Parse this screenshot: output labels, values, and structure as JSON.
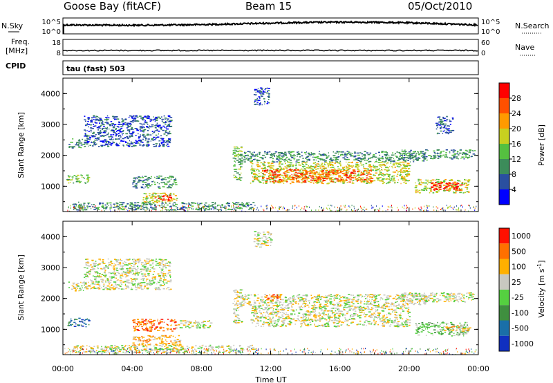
{
  "header": {
    "station": "Goose Bay (fitACF)",
    "beam": "Beam 15",
    "date": "05/Oct/2010"
  },
  "noise_panel": {
    "left_label": "N.Sky",
    "right_label": "N.Search",
    "left_ticks": [
      "10^5",
      "10^0"
    ],
    "right_ticks": [
      "10^5",
      "10^0"
    ]
  },
  "freq_panel": {
    "left_label_1": "Freq.",
    "left_label_2": "[MHz]",
    "right_label": "Nave",
    "left_ticks": [
      "18",
      "8"
    ],
    "right_ticks": [
      "60",
      "0"
    ]
  },
  "cpid": {
    "label": "CPID",
    "value": "tau (fast) 503"
  },
  "chart_data": [
    {
      "type": "heatmap",
      "name": "Power",
      "ylabel": "Slant Range [km]",
      "ylim": [
        180,
        4500
      ],
      "yticks": [
        1000,
        2000,
        3000,
        4000
      ],
      "xlim": [
        0,
        24
      ],
      "colorbar": {
        "label": "Power [dB]",
        "ticks": [
          "4",
          "8",
          "12",
          "16",
          "20",
          "24",
          "28"
        ],
        "colors": [
          "#0000ff",
          "#2a4fa0",
          "#3c8c5a",
          "#55c040",
          "#c8d020",
          "#ff9a00",
          "#ff5000",
          "#ff0000"
        ]
      },
      "regions": [
        {
          "t0": 0.3,
          "t1": 1.3,
          "r0": 2250,
          "r1": 2550,
          "level": 2
        },
        {
          "t0": 0.2,
          "t1": 1.5,
          "r0": 1100,
          "r1": 1380,
          "level": 3
        },
        {
          "t0": 1.2,
          "t1": 6.2,
          "r0": 2300,
          "r1": 3300,
          "level": 1
        },
        {
          "t0": 4.0,
          "t1": 6.5,
          "r0": 950,
          "r1": 1350,
          "level": 2
        },
        {
          "t0": 4.6,
          "t1": 6.6,
          "r0": 480,
          "r1": 800,
          "level": 4
        },
        {
          "t0": 5.2,
          "t1": 6.2,
          "r0": 560,
          "r1": 720,
          "level": 7
        },
        {
          "t0": 0.5,
          "t1": 11.0,
          "r0": 250,
          "r1": 500,
          "level": 2
        },
        {
          "t0": 9.8,
          "t1": 10.3,
          "r0": 1200,
          "r1": 2300,
          "level": 3
        },
        {
          "t0": 10.2,
          "t1": 21.0,
          "r0": 1800,
          "r1": 2150,
          "level": 2
        },
        {
          "t0": 10.8,
          "t1": 20.0,
          "r0": 1100,
          "r1": 1800,
          "level": 4
        },
        {
          "t0": 11.5,
          "t1": 17.8,
          "r0": 1150,
          "r1": 1550,
          "level": 6
        },
        {
          "t0": 19.5,
          "t1": 23.8,
          "r0": 1900,
          "r1": 2200,
          "level": 2
        },
        {
          "t0": 20.3,
          "t1": 23.4,
          "r0": 800,
          "r1": 1250,
          "level": 4
        },
        {
          "t0": 21.2,
          "t1": 23.0,
          "r0": 880,
          "r1": 1150,
          "level": 7
        },
        {
          "t0": 11.0,
          "t1": 12.0,
          "r0": 3650,
          "r1": 4200,
          "level": 1
        },
        {
          "t0": 21.5,
          "t1": 22.5,
          "r0": 2700,
          "r1": 3300,
          "level": 1
        }
      ]
    },
    {
      "type": "heatmap",
      "name": "Velocity",
      "ylabel": "Slant Range [km]",
      "ylim": [
        180,
        4500
      ],
      "yticks": [
        1000,
        2000,
        3000,
        4000
      ],
      "xlim": [
        0,
        24
      ],
      "xticks": [
        "00:00",
        "04:00",
        "08:00",
        "12:00",
        "16:00",
        "20:00",
        "00:00"
      ],
      "xlabel": "Time UT",
      "colorbar": {
        "label": "Velocity [m s",
        "label_sup": "-1",
        "label_end": "]",
        "ticks": [
          "1000",
          "500",
          "100",
          "25",
          "-25",
          "-100",
          "-500",
          "-1000"
        ],
        "colors": [
          "#1030c0",
          "#1a6fa8",
          "#3f8f3f",
          "#55d040",
          "#c8c8c0",
          "#ffb000",
          "#ff7000",
          "#ff1000"
        ]
      },
      "regions": [
        {
          "t0": 0.3,
          "t1": 1.3,
          "r0": 2250,
          "r1": 2550,
          "level": 4
        },
        {
          "t0": 0.2,
          "t1": 1.5,
          "r0": 1100,
          "r1": 1380,
          "level": 1
        },
        {
          "t0": 1.2,
          "t1": 6.2,
          "r0": 2300,
          "r1": 3300,
          "level": 4
        },
        {
          "t0": 4.0,
          "t1": 6.5,
          "r0": 950,
          "r1": 1350,
          "level": 6
        },
        {
          "t0": 6.5,
          "t1": 8.5,
          "r0": 1050,
          "r1": 1300,
          "level": 4
        },
        {
          "t0": 4.0,
          "t1": 6.8,
          "r0": 480,
          "r1": 820,
          "level": 5
        },
        {
          "t0": 0.5,
          "t1": 11.0,
          "r0": 250,
          "r1": 500,
          "level": 4
        },
        {
          "t0": 9.8,
          "t1": 10.3,
          "r0": 1200,
          "r1": 2300,
          "level": 4
        },
        {
          "t0": 10.2,
          "t1": 21.0,
          "r0": 1800,
          "r1": 2150,
          "level": 4
        },
        {
          "t0": 10.8,
          "t1": 20.0,
          "r0": 1100,
          "r1": 1800,
          "level": 4
        },
        {
          "t0": 11.5,
          "t1": 12.6,
          "r0": 1950,
          "r1": 2150,
          "level": 6
        },
        {
          "t0": 19.5,
          "t1": 23.8,
          "r0": 1900,
          "r1": 2200,
          "level": 4
        },
        {
          "t0": 20.3,
          "t1": 23.4,
          "r0": 800,
          "r1": 1250,
          "level": 3
        },
        {
          "t0": 22.0,
          "t1": 23.5,
          "r0": 950,
          "r1": 1150,
          "level": 5
        },
        {
          "t0": 11.0,
          "t1": 12.0,
          "r0": 3650,
          "r1": 4200,
          "level": 4
        }
      ]
    }
  ]
}
